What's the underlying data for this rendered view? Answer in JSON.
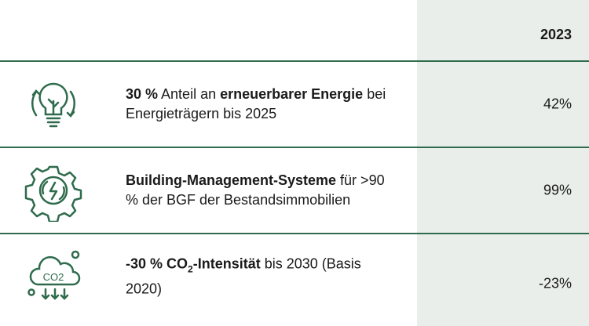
{
  "table": {
    "header": {
      "year": "2023"
    },
    "rows": [
      {
        "text": [
          {
            "text": "30 %",
            "bold": true
          },
          {
            "text": " Anteil an "
          },
          {
            "text": "erneuerbarer Energie",
            "bold": true
          },
          {
            "text": " bei Energieträgern bis 2025"
          }
        ],
        "value": "42%"
      },
      {
        "text": [
          {
            "text": "Building-Management-Systeme",
            "bold": true
          },
          {
            "text": " für >90 % der BGF der Bestandsimmobilien"
          }
        ],
        "value": "99%"
      },
      {
        "text": [
          {
            "text": "-30 % CO",
            "bold": true
          },
          {
            "text": "2",
            "bold": true,
            "sub": true
          },
          {
            "text": "-Intensität",
            "bold": true
          },
          {
            "text": " bis 2030 (Basis 2020)"
          }
        ],
        "value": "-23%"
      }
    ]
  }
}
